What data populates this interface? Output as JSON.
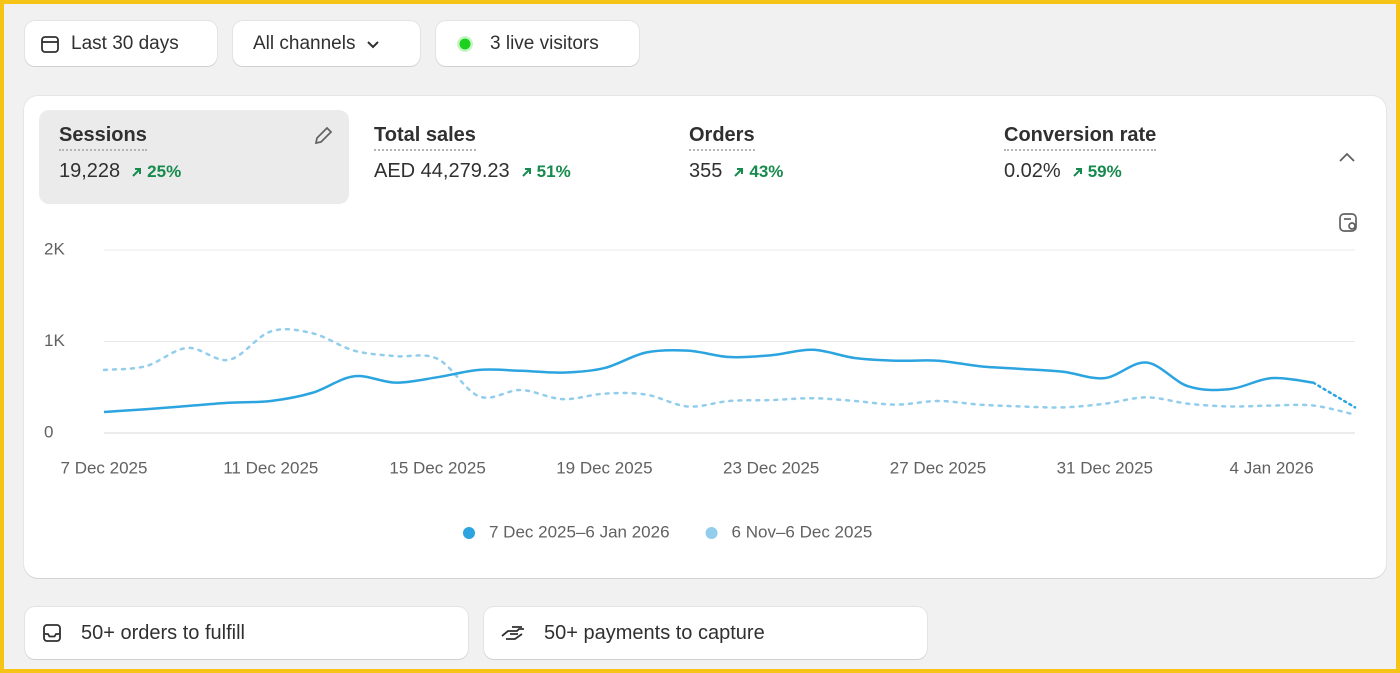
{
  "toolbar": {
    "date_range": "Last 30 days",
    "channels": "All channels",
    "live_visitors": "3 live visitors"
  },
  "metrics": [
    {
      "label": "Sessions",
      "value": "19,228",
      "change": "25%"
    },
    {
      "label": "Total sales",
      "value": "AED 44,279.23",
      "change": "51%"
    },
    {
      "label": "Orders",
      "value": "355",
      "change": "43%"
    },
    {
      "label": "Conversion rate",
      "value": "0.02%",
      "change": "59%"
    }
  ],
  "chart_data": {
    "type": "line",
    "categories": [
      "7 Dec 2025",
      null,
      null,
      null,
      "11 Dec 2025",
      null,
      null,
      null,
      "15 Dec 2025",
      null,
      null,
      null,
      "19 Dec 2025",
      null,
      null,
      null,
      "23 Dec 2025",
      null,
      null,
      null,
      "27 Dec 2025",
      null,
      null,
      null,
      "31 Dec 2025",
      null,
      null,
      null,
      "4 Jan 2026",
      null,
      null
    ],
    "series": [
      {
        "name": "7 Dec 2025–6 Jan 2026",
        "color": "#2ba4e0",
        "values": [
          230,
          260,
          295,
          330,
          350,
          440,
          620,
          550,
          610,
          690,
          680,
          660,
          710,
          880,
          900,
          830,
          850,
          910,
          820,
          790,
          790,
          730,
          700,
          670,
          600,
          770,
          510,
          480,
          600,
          550,
          280
        ]
      },
      {
        "name": "6 Nov–6 Dec 2025",
        "color": "#92cdec",
        "values": [
          690,
          730,
          930,
          800,
          1110,
          1090,
          900,
          840,
          810,
          400,
          470,
          370,
          430,
          420,
          290,
          350,
          360,
          380,
          350,
          310,
          350,
          310,
          290,
          280,
          320,
          390,
          320,
          290,
          300,
          300,
          200
        ]
      }
    ],
    "ylim": [
      0,
      2000
    ],
    "yticks": [
      0,
      {
        "value": 1000,
        "label": "1K"
      },
      {
        "value": 2000,
        "label": "2K"
      }
    ],
    "grid": true
  },
  "tasks": [
    {
      "label": "50+ orders to fulfill"
    },
    {
      "label": "50+ payments to capture"
    }
  ]
}
